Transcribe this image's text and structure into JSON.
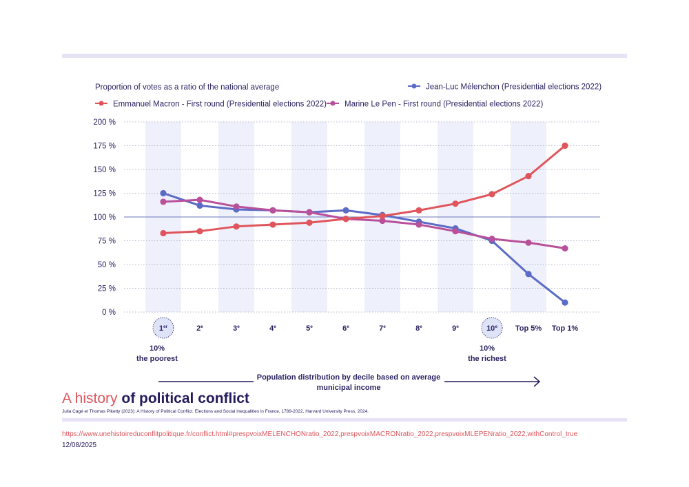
{
  "chart_data": {
    "type": "line",
    "title": "Proportion of votes as a ratio of the national average",
    "categories": [
      "1er",
      "2e",
      "3e",
      "4e",
      "5e",
      "6e",
      "7e",
      "8e",
      "9e",
      "10e",
      "Top 5%",
      "Top 1%"
    ],
    "category_display": [
      {
        "base": "1",
        "sup": "er"
      },
      {
        "base": "2",
        "sup": "e"
      },
      {
        "base": "3",
        "sup": "e"
      },
      {
        "base": "4",
        "sup": "e"
      },
      {
        "base": "5",
        "sup": "e"
      },
      {
        "base": "6",
        "sup": "e"
      },
      {
        "base": "7",
        "sup": "e"
      },
      {
        "base": "8",
        "sup": "e"
      },
      {
        "base": "9",
        "sup": "e"
      },
      {
        "base": "10",
        "sup": "e"
      },
      {
        "base": "Top 5%",
        "sup": ""
      },
      {
        "base": "Top 1%",
        "sup": ""
      }
    ],
    "highlighted_categories": [
      "1er",
      "10e"
    ],
    "series": [
      {
        "name": "Jean-Luc Mélenchon (Presidential elections 2022)",
        "color": "#5b6bc6",
        "values": [
          125,
          112,
          108,
          107,
          105,
          107,
          102,
          95,
          88,
          75,
          40,
          10
        ]
      },
      {
        "name": "Emmanuel Macron - First round (Presidential elections 2022)",
        "color": "#e0555c",
        "values": [
          83,
          85,
          90,
          92,
          94,
          98,
          101,
          107,
          114,
          124,
          143,
          175
        ]
      },
      {
        "name": "Marine Le Pen - First round (Presidential elections 2022)",
        "color": "#b9509a",
        "values": [
          116,
          118,
          111,
          107,
          105,
          98,
          96,
          92,
          85,
          77,
          73,
          67
        ]
      }
    ],
    "yticks": [
      "0 %",
      "25 %",
      "50 %",
      "75 %",
      "100 %",
      "125 %",
      "150 %",
      "175 %",
      "200 %"
    ],
    "ylim": [
      0,
      200
    ],
    "reference_line": 100,
    "grid": true,
    "legend_position": "top",
    "annotations": {
      "poorest": [
        "10%",
        "the poorest"
      ],
      "richest": [
        "10%",
        "the richest"
      ],
      "xlabel": [
        "Population distribution by decile based on average",
        "municipal income"
      ]
    },
    "colors": {
      "band": "#eef0fb",
      "grid": "#9a9fb8",
      "reference": "#6c74b8",
      "text": "#2b2462",
      "arrow": "#231a5c",
      "highlight_circle": "#dfe3f7"
    }
  },
  "brand": {
    "light": "A history ",
    "bold": "of political conflict"
  },
  "citation": "Julia Cagé et Thomas Piketty (2023): A History of Political Conflict. Elections and Social Inequalities in France, 1789-2022, Harvard University Press, 2024.",
  "url": "https://www.unehistoireduconflitpolitique.fr/conflict.html#prespvoixMELENCHONratio_2022,prespvoixMACRONratio_2022,prespvoixMLEPENratio_2022,withControl_true",
  "date": "12/08/2025"
}
